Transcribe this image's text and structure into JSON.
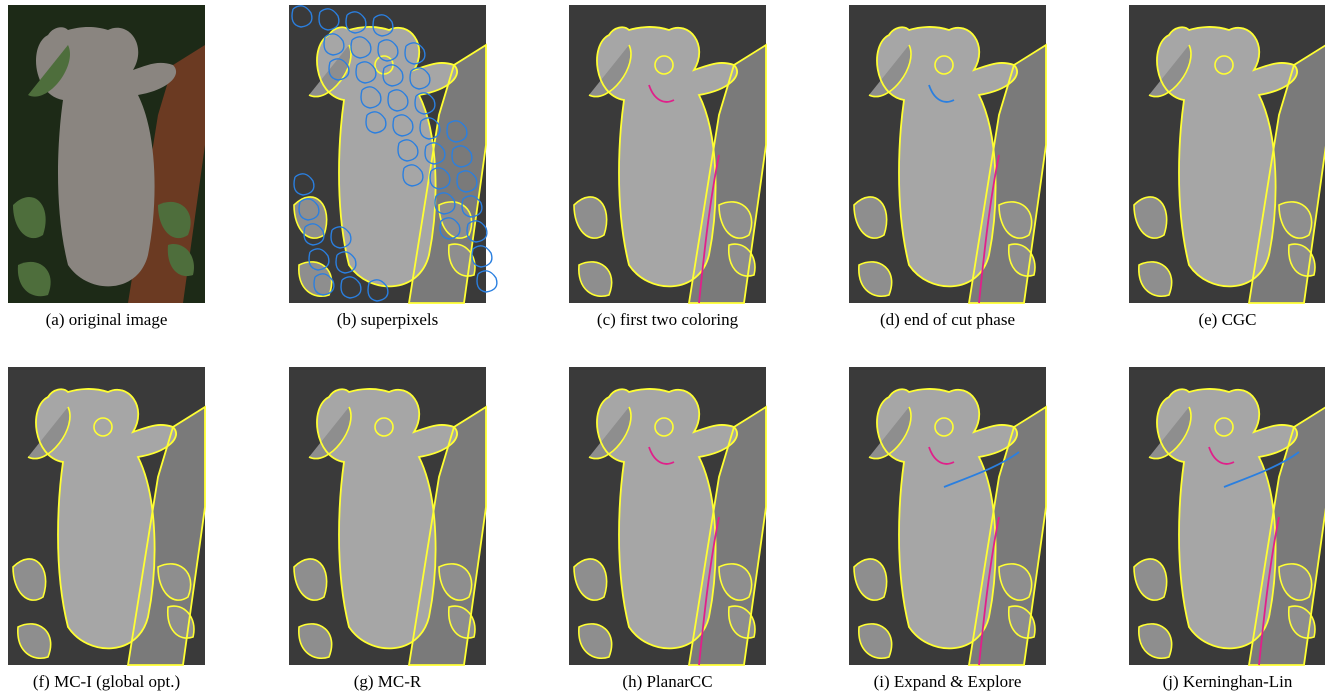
{
  "figure": {
    "panels": [
      {
        "caption": "(a) original image"
      },
      {
        "caption": "(b) superpixels"
      },
      {
        "caption": "(c) first two coloring"
      },
      {
        "caption": "(d) end of cut phase"
      },
      {
        "caption": "(e) CGC"
      },
      {
        "caption": "(f) MC-I (global opt.)"
      },
      {
        "caption": "(g) MC-R"
      },
      {
        "caption": "(h) PlanarCC"
      },
      {
        "caption": "(i) Expand & Explore"
      },
      {
        "caption": "(j) Kerninghan-Lin"
      }
    ]
  }
}
